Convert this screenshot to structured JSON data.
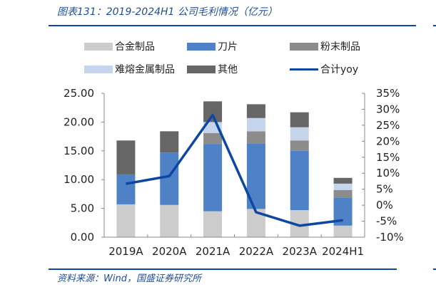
{
  "header": {
    "title": "图表131：2019-2024H1 公司毛利情况（亿元）"
  },
  "footer": {
    "source": "资料来源：Wind，国盛证券研究所"
  },
  "legend": [
    {
      "label": "合金制品",
      "type": "bar",
      "color": "#cccccc"
    },
    {
      "label": "刀片",
      "type": "bar",
      "color": "#4f81c7"
    },
    {
      "label": "粉末制品",
      "type": "bar",
      "color": "#8c8c8c"
    },
    {
      "label": "难熔金属制品",
      "type": "bar",
      "color": "#c5d6ec"
    },
    {
      "label": "其他",
      "type": "bar",
      "color": "#666666"
    },
    {
      "label": "合计yoy",
      "type": "line",
      "color": "#0d47a1"
    }
  ],
  "colors": {
    "accent": "#0d47a1",
    "title_text": "#1f4e96"
  },
  "chart_data": {
    "type": "bar",
    "stacked": true,
    "title": "2019-2024H1 公司毛利情况（亿元）",
    "xlabel": "",
    "ylabel": "亿元",
    "categories": [
      "2019A",
      "2020A",
      "2021A",
      "2022A",
      "2023A",
      "2024H1"
    ],
    "series": [
      {
        "name": "合金制品",
        "type": "bar",
        "axis": "left",
        "color": "#cccccc",
        "values": [
          5.7,
          5.6,
          4.5,
          4.9,
          4.7,
          2.0
        ]
      },
      {
        "name": "刀片",
        "type": "bar",
        "axis": "left",
        "color": "#4f81c7",
        "values": [
          5.2,
          9.1,
          11.7,
          11.4,
          10.3,
          4.9
        ]
      },
      {
        "name": "粉末制品",
        "type": "bar",
        "axis": "left",
        "color": "#8c8c8c",
        "values": [
          0,
          0,
          1.9,
          2.1,
          1.8,
          1.3
        ]
      },
      {
        "name": "难熔金属制品",
        "type": "bar",
        "axis": "left",
        "color": "#c5d6ec",
        "values": [
          0,
          0,
          1.9,
          2.3,
          2.3,
          1.1
        ]
      },
      {
        "name": "其他",
        "type": "bar",
        "axis": "left",
        "color": "#666666",
        "values": [
          5.9,
          3.7,
          3.6,
          2.4,
          2.6,
          1.0
        ]
      },
      {
        "name": "合计yoy",
        "type": "line",
        "axis": "right",
        "color": "#0d47a1",
        "values": [
          6.7,
          9.1,
          28.2,
          -2.2,
          -6.4,
          -4.7
        ],
        "unit": "%"
      }
    ],
    "ylim": [
      0,
      25
    ],
    "yticks": [
      "0.00",
      "5.00",
      "10.00",
      "15.00",
      "20.00",
      "25.00"
    ],
    "y2lim": [
      -10,
      35
    ],
    "y2ticks": [
      "-10%",
      "-5%",
      "0%",
      "5%",
      "10%",
      "15%",
      "20%",
      "25%",
      "30%",
      "35%"
    ],
    "grid": false,
    "legend_position": "top"
  }
}
